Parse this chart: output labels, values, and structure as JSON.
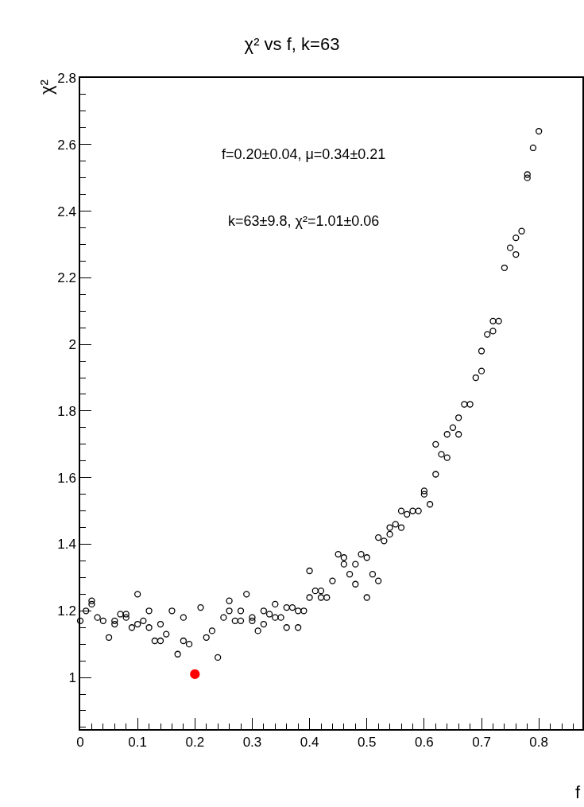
{
  "chart_data": {
    "type": "scatter",
    "title": "χ² vs f, k=63",
    "xlabel": "f",
    "ylabel": "χ²",
    "annotations": [
      "f=0.20±0.04, μ=0.34±0.21",
      "k=63±9.8, χ²=1.01±0.06"
    ],
    "series": [
      {
        "color": "#000000",
        "marker": "circle-open",
        "x": [
          0,
          0.01,
          0.02,
          0.02,
          0.03,
          0.04,
          0.05,
          0.06,
          0.06,
          0.07,
          0.08,
          0.08,
          0.09,
          0.1,
          0.1,
          0.11,
          0.12,
          0.12,
          0.13,
          0.14,
          0.14,
          0.15,
          0.16,
          0.17,
          0.18,
          0.18,
          0.19,
          0.21,
          0.22,
          0.23,
          0.24,
          0.25,
          0.26,
          0.26,
          0.27,
          0.28,
          0.28,
          0.29,
          0.3,
          0.3,
          0.31,
          0.32,
          0.32,
          0.33,
          0.34,
          0.34,
          0.35,
          0.36,
          0.36,
          0.37,
          0.38,
          0.38,
          0.39,
          0.4,
          0.4,
          0.41,
          0.42,
          0.42,
          0.43,
          0.44,
          0.45,
          0.46,
          0.46,
          0.47,
          0.48,
          0.48,
          0.49,
          0.5,
          0.5,
          0.51,
          0.52,
          0.52,
          0.53,
          0.54,
          0.54,
          0.55,
          0.56,
          0.56,
          0.57,
          0.58,
          0.59,
          0.6,
          0.6,
          0.61,
          0.62,
          0.62,
          0.63,
          0.64,
          0.64,
          0.65,
          0.66,
          0.66,
          0.67,
          0.68,
          0.69,
          0.7,
          0.7,
          0.71,
          0.72,
          0.72,
          0.73,
          0.74,
          0.75,
          0.76,
          0.76,
          0.77,
          0.78,
          0.78,
          0.79,
          0.8
        ],
        "values": [
          1.17,
          1.2,
          1.23,
          1.22,
          1.18,
          1.17,
          1.12,
          1.16,
          1.17,
          1.19,
          1.19,
          1.18,
          1.15,
          1.25,
          1.16,
          1.17,
          1.15,
          1.2,
          1.11,
          1.16,
          1.11,
          1.13,
          1.2,
          1.07,
          1.18,
          1.11,
          1.1,
          1.21,
          1.12,
          1.14,
          1.06,
          1.18,
          1.23,
          1.2,
          1.17,
          1.2,
          1.17,
          1.25,
          1.18,
          1.17,
          1.14,
          1.2,
          1.16,
          1.19,
          1.22,
          1.18,
          1.18,
          1.21,
          1.15,
          1.21,
          1.2,
          1.15,
          1.2,
          1.32,
          1.24,
          1.26,
          1.26,
          1.24,
          1.24,
          1.29,
          1.37,
          1.36,
          1.34,
          1.31,
          1.34,
          1.28,
          1.37,
          1.36,
          1.24,
          1.31,
          1.29,
          1.42,
          1.41,
          1.43,
          1.45,
          1.46,
          1.45,
          1.5,
          1.49,
          1.5,
          1.5,
          1.56,
          1.55,
          1.52,
          1.61,
          1.7,
          1.67,
          1.66,
          1.73,
          1.75,
          1.73,
          1.78,
          1.82,
          1.82,
          1.9,
          1.92,
          1.98,
          2.03,
          2.04,
          2.07,
          2.07,
          2.23,
          2.29,
          2.32,
          2.27,
          2.34,
          2.51,
          2.5,
          2.59,
          2.64
        ]
      },
      {
        "color": "#ff0000",
        "marker": "circle",
        "x": [
          0.2
        ],
        "values": [
          1.01
        ]
      }
    ],
    "xlim": [
      0,
      0.876
    ],
    "xticks": [
      0,
      0.1,
      0.2,
      0.3,
      0.4,
      0.5,
      0.6,
      0.7,
      0.8
    ],
    "ylim": [
      0.845,
      2.8
    ],
    "yticks": [
      1,
      1.2,
      1.4,
      1.6,
      1.8,
      2,
      2.2,
      2.4,
      2.6,
      2.8
    ]
  }
}
